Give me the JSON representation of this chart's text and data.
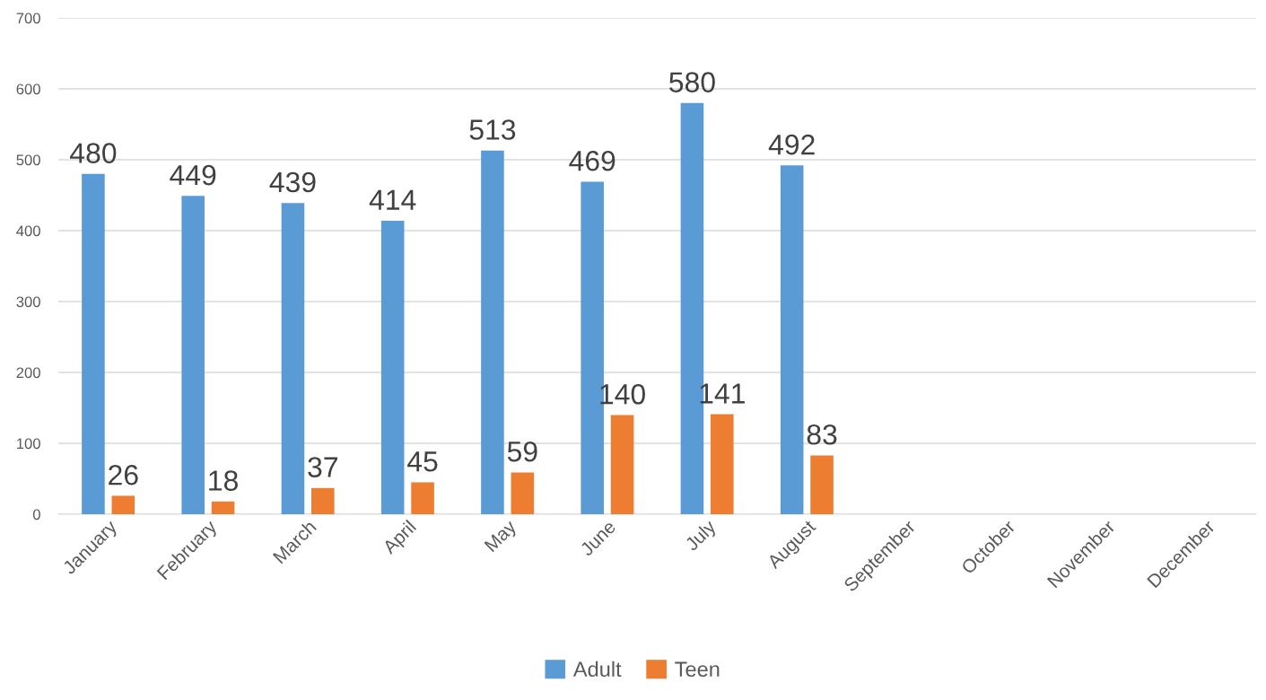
{
  "chart_data": {
    "type": "bar",
    "categories": [
      "January",
      "February",
      "March",
      "April",
      "May",
      "June",
      "July",
      "August",
      "September",
      "October",
      "November",
      "December"
    ],
    "series": [
      {
        "name": "Adult",
        "color": "#5b9bd5",
        "values": [
          480,
          449,
          439,
          414,
          513,
          469,
          580,
          492,
          null,
          null,
          null,
          null
        ]
      },
      {
        "name": "Teen",
        "color": "#ed7d31",
        "values": [
          26,
          18,
          37,
          45,
          59,
          140,
          141,
          83,
          null,
          null,
          null,
          null
        ]
      }
    ],
    "ylim": [
      0,
      700
    ],
    "yticks": [
      0,
      100,
      200,
      300,
      400,
      500,
      600,
      700
    ],
    "grid": "y",
    "legend": "bottom",
    "data_labels": true
  }
}
